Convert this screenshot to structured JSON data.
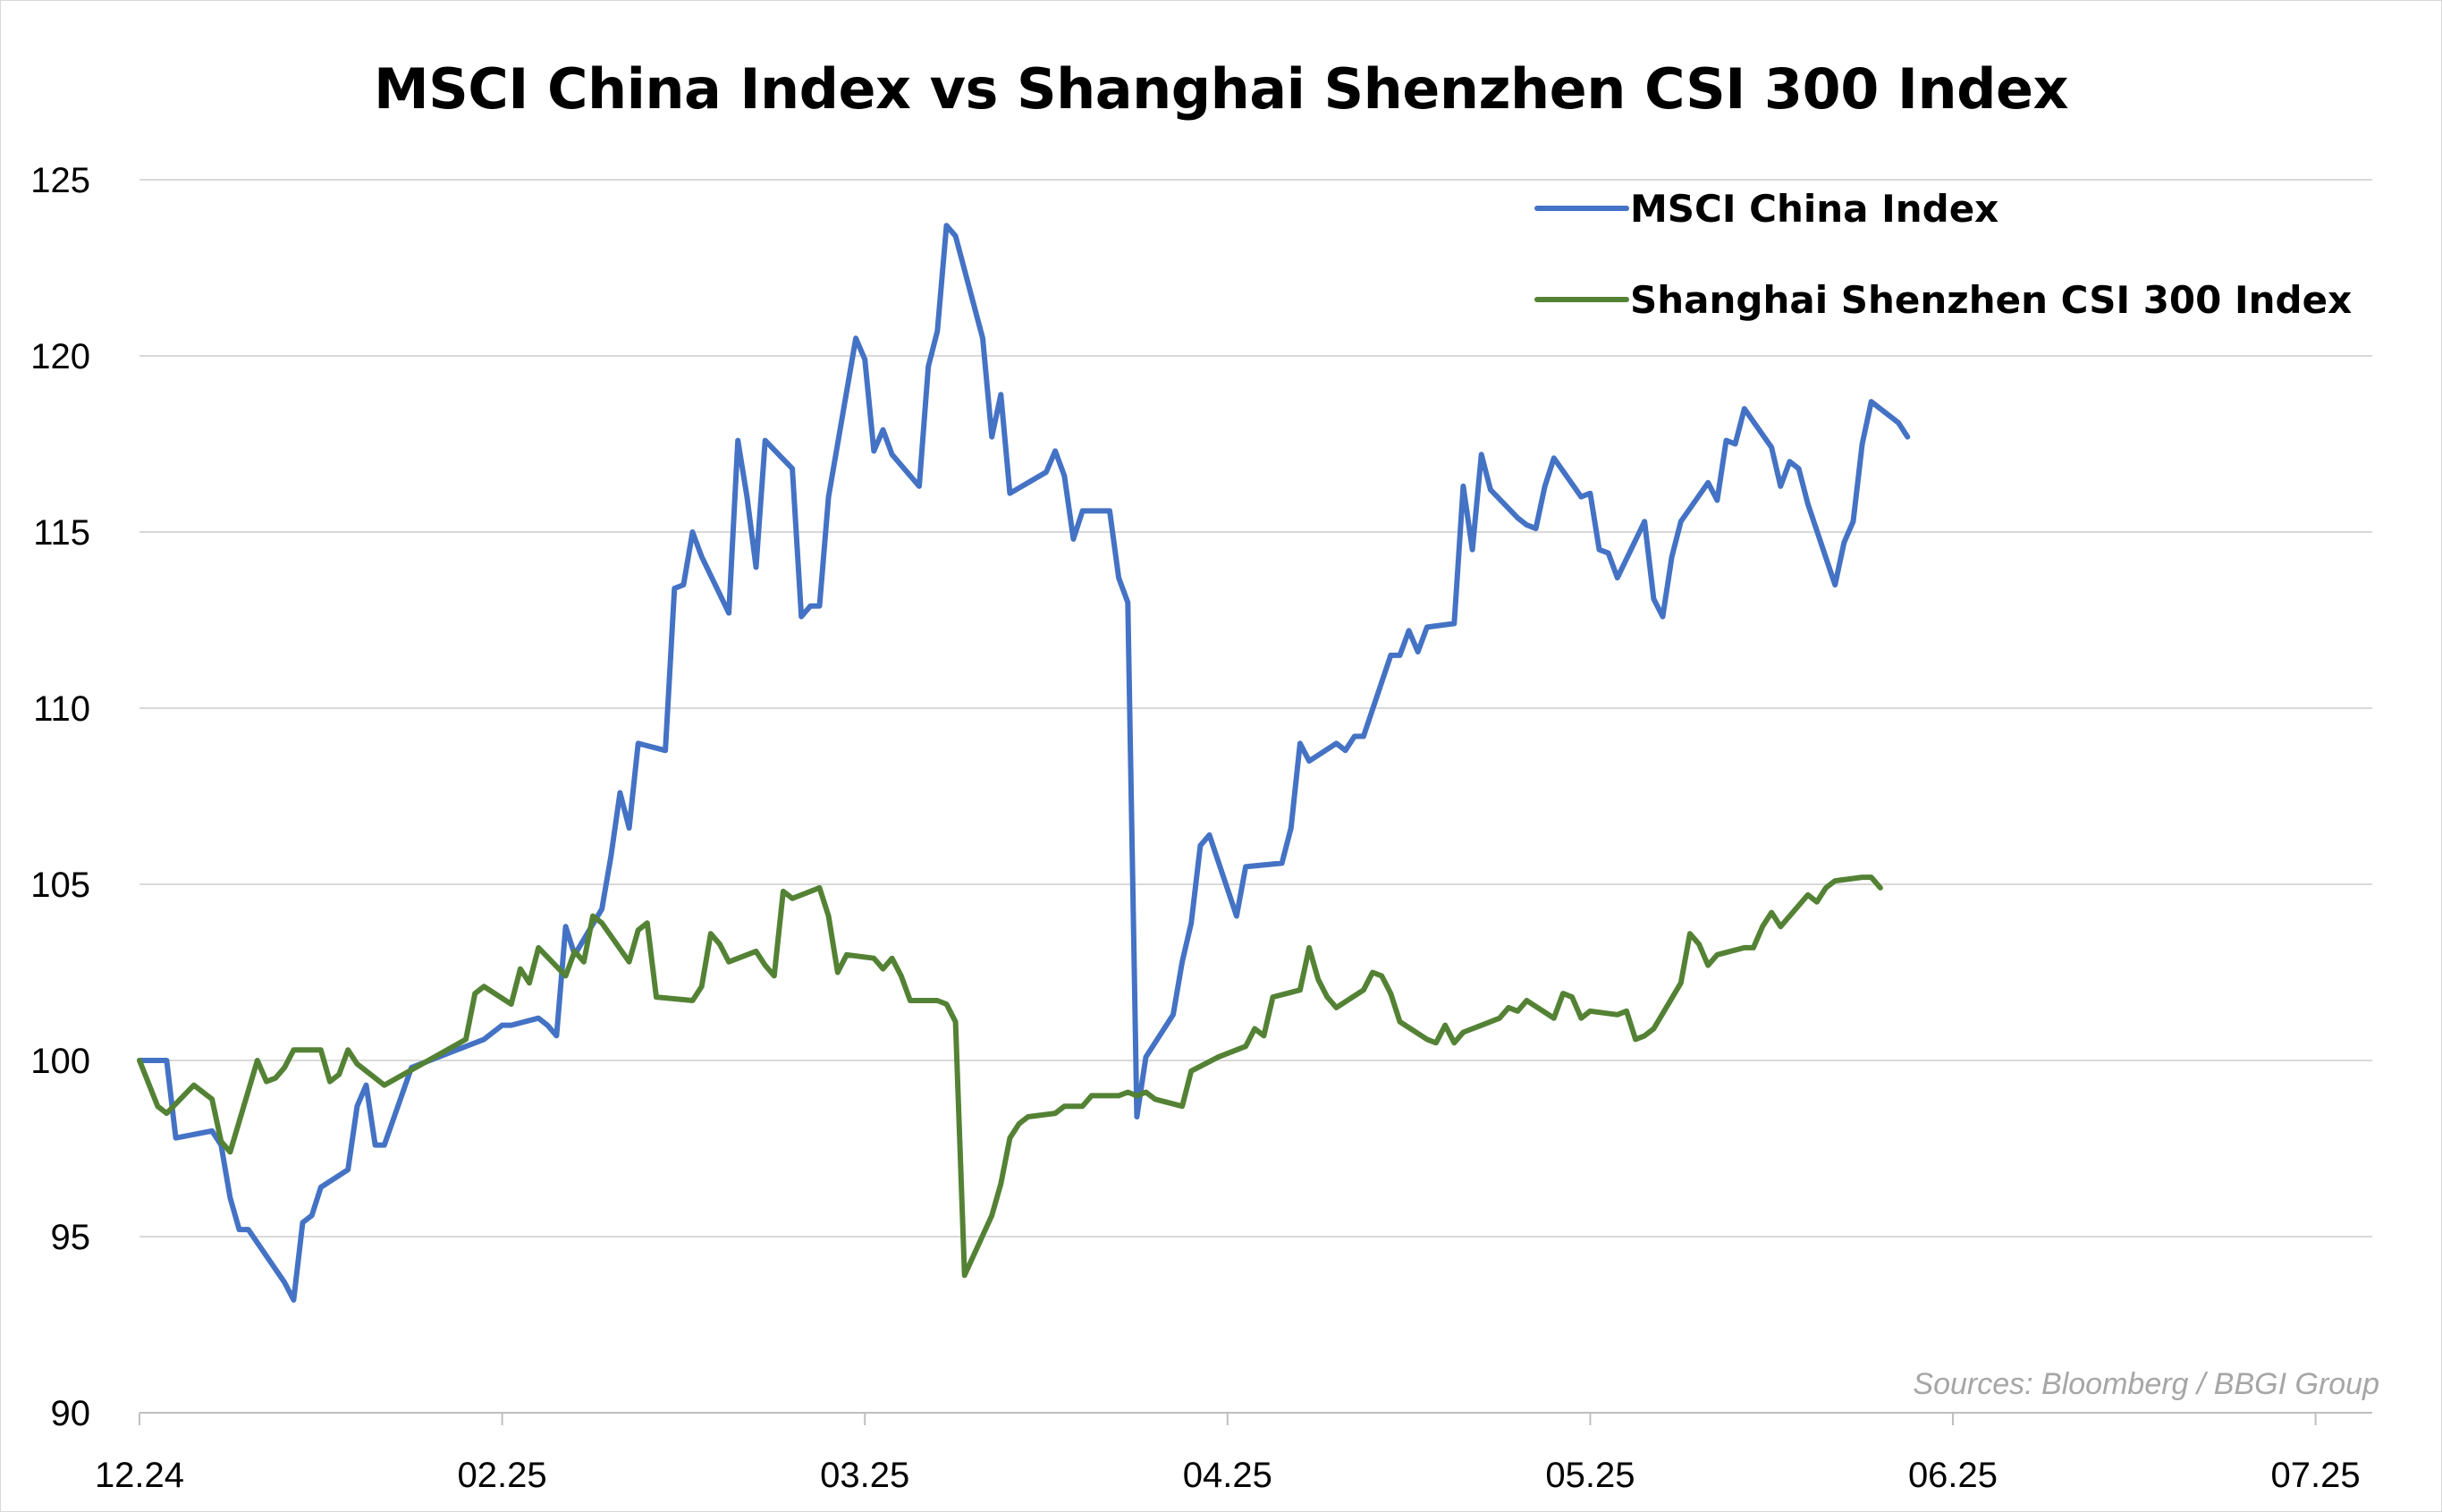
{
  "chart_data": {
    "type": "line",
    "title": "MSCI China Index vs Shanghai Shenzhen CSI 300 Index",
    "xlabel": "",
    "ylabel": "",
    "ylim": [
      90,
      125
    ],
    "yticks": [
      "90",
      "95",
      "100",
      "105",
      "110",
      "115",
      "120",
      "125"
    ],
    "xticks": [
      "12.24",
      "02.25",
      "03.25",
      "04.25",
      "05.25",
      "06.25",
      "07.25"
    ],
    "grid": "horizontal",
    "legend_position": "top-right",
    "source": "Sources: Bloomberg / BBGI Group",
    "x_unit": "trading day index (0 = 12.24)",
    "x_tick_positions": [
      0,
      40,
      80,
      120,
      160,
      200,
      240
    ],
    "series": [
      {
        "name": "MSCI China Index",
        "color": "#4472c4",
        "points": [
          [
            0,
            100
          ],
          [
            3,
            100
          ],
          [
            4,
            97.8
          ],
          [
            8,
            98
          ],
          [
            9,
            97.6
          ],
          [
            10,
            96.1
          ],
          [
            11,
            95.2
          ],
          [
            12,
            95.2
          ],
          [
            16,
            93.7
          ],
          [
            17,
            93.2
          ],
          [
            18,
            95.4
          ],
          [
            19,
            95.6
          ],
          [
            20,
            96.4
          ],
          [
            23,
            96.9
          ],
          [
            24,
            98.7
          ],
          [
            25,
            99.3
          ],
          [
            26,
            97.6
          ],
          [
            27,
            97.6
          ],
          [
            30,
            99.8
          ],
          [
            38,
            100.6
          ],
          [
            40,
            101
          ],
          [
            41,
            101
          ],
          [
            44,
            101.2
          ],
          [
            45,
            101
          ],
          [
            46,
            100.7
          ],
          [
            47,
            103.8
          ],
          [
            48,
            103
          ],
          [
            51,
            104.3
          ],
          [
            52,
            105.8
          ],
          [
            53,
            107.6
          ],
          [
            54,
            106.6
          ],
          [
            55,
            109
          ],
          [
            58,
            108.8
          ],
          [
            59,
            113.4
          ],
          [
            60,
            113.5
          ],
          [
            61,
            115
          ],
          [
            62,
            114.3
          ],
          [
            65,
            112.7
          ],
          [
            66,
            117.6
          ],
          [
            67,
            116
          ],
          [
            68,
            114
          ],
          [
            69,
            117.6
          ],
          [
            72,
            116.8
          ],
          [
            73,
            112.6
          ],
          [
            74,
            112.9
          ],
          [
            75,
            112.9
          ],
          [
            76,
            116
          ],
          [
            79,
            120.5
          ],
          [
            80,
            119.9
          ],
          [
            81,
            117.3
          ],
          [
            82,
            117.9
          ],
          [
            83,
            117.2
          ],
          [
            86,
            116.3
          ],
          [
            87,
            119.7
          ],
          [
            88,
            120.7
          ],
          [
            89,
            123.7
          ],
          [
            90,
            123.4
          ],
          [
            93,
            120.5
          ],
          [
            94,
            117.7
          ],
          [
            95,
            118.9
          ],
          [
            96,
            116.1
          ],
          [
            100,
            116.7
          ],
          [
            101,
            117.3
          ],
          [
            102,
            116.6
          ],
          [
            103,
            114.8
          ],
          [
            104,
            115.6
          ],
          [
            107,
            115.6
          ],
          [
            108,
            113.7
          ],
          [
            109,
            113
          ],
          [
            110,
            98.4
          ],
          [
            111,
            100.1
          ],
          [
            114,
            101.3
          ],
          [
            115,
            102.8
          ],
          [
            116,
            103.9
          ],
          [
            117,
            106.1
          ],
          [
            118,
            106.4
          ],
          [
            121,
            104.1
          ],
          [
            122,
            105.5
          ],
          [
            126,
            105.6
          ],
          [
            127,
            106.6
          ],
          [
            128,
            109
          ],
          [
            129,
            108.5
          ],
          [
            132,
            109
          ],
          [
            133,
            108.8
          ],
          [
            134,
            109.2
          ],
          [
            135,
            109.2
          ],
          [
            138,
            111.5
          ],
          [
            139,
            111.5
          ],
          [
            140,
            112.2
          ],
          [
            141,
            111.6
          ],
          [
            142,
            112.3
          ],
          [
            145,
            112.4
          ],
          [
            146,
            116.3
          ],
          [
            147,
            114.5
          ],
          [
            148,
            117.2
          ],
          [
            149,
            116.2
          ],
          [
            152,
            115.4
          ],
          [
            153,
            115.2
          ],
          [
            154,
            115.1
          ],
          [
            155,
            116.3
          ],
          [
            156,
            117.1
          ],
          [
            159,
            116
          ],
          [
            160,
            116.1
          ],
          [
            161,
            114.5
          ],
          [
            162,
            114.4
          ],
          [
            163,
            113.7
          ],
          [
            166,
            115.3
          ],
          [
            167,
            113.1
          ],
          [
            168,
            112.6
          ],
          [
            169,
            114.3
          ],
          [
            170,
            115.3
          ],
          [
            173,
            116.4
          ],
          [
            174,
            115.9
          ],
          [
            175,
            117.6
          ],
          [
            176,
            117.5
          ],
          [
            177,
            118.5
          ],
          [
            180,
            117.4
          ],
          [
            181,
            116.3
          ],
          [
            182,
            117
          ],
          [
            183,
            116.8
          ],
          [
            184,
            115.8
          ],
          [
            187,
            113.5
          ],
          [
            188,
            114.7
          ],
          [
            189,
            115.3
          ],
          [
            190,
            117.5
          ],
          [
            191,
            118.7
          ],
          [
            194,
            118.1
          ],
          [
            195,
            117.7
          ]
        ]
      },
      {
        "name": "Shanghai Shenzhen CSI 300 Index",
        "color": "#548235",
        "points": [
          [
            0,
            100
          ],
          [
            2,
            98.7
          ],
          [
            3,
            98.5
          ],
          [
            6,
            99.3
          ],
          [
            7,
            99.1
          ],
          [
            8,
            98.9
          ],
          [
            9,
            97.7
          ],
          [
            10,
            97.4
          ],
          [
            13,
            100
          ],
          [
            14,
            99.4
          ],
          [
            15,
            99.5
          ],
          [
            16,
            99.8
          ],
          [
            17,
            100.3
          ],
          [
            20,
            100.3
          ],
          [
            21,
            99.4
          ],
          [
            22,
            99.6
          ],
          [
            23,
            100.3
          ],
          [
            24,
            99.9
          ],
          [
            27,
            99.3
          ],
          [
            36,
            100.6
          ],
          [
            37,
            101.9
          ],
          [
            38,
            102.1
          ],
          [
            41,
            101.6
          ],
          [
            42,
            102.6
          ],
          [
            43,
            102.2
          ],
          [
            44,
            103.2
          ],
          [
            47,
            102.4
          ],
          [
            48,
            103.1
          ],
          [
            49,
            102.8
          ],
          [
            50,
            104.1
          ],
          [
            51,
            103.9
          ],
          [
            54,
            102.8
          ],
          [
            55,
            103.7
          ],
          [
            56,
            103.9
          ],
          [
            57,
            101.8
          ],
          [
            61,
            101.7
          ],
          [
            62,
            102.1
          ],
          [
            63,
            103.6
          ],
          [
            64,
            103.3
          ],
          [
            65,
            102.8
          ],
          [
            68,
            103.1
          ],
          [
            69,
            102.7
          ],
          [
            70,
            102.4
          ],
          [
            71,
            104.8
          ],
          [
            72,
            104.6
          ],
          [
            75,
            104.9
          ],
          [
            76,
            104.1
          ],
          [
            77,
            102.5
          ],
          [
            78,
            103
          ],
          [
            81,
            102.9
          ],
          [
            82,
            102.6
          ],
          [
            83,
            102.9
          ],
          [
            84,
            102.4
          ],
          [
            85,
            101.7
          ],
          [
            88,
            101.7
          ],
          [
            89,
            101.6
          ],
          [
            90,
            101.1
          ],
          [
            91,
            93.9
          ],
          [
            94,
            95.6
          ],
          [
            95,
            96.5
          ],
          [
            96,
            97.8
          ],
          [
            97,
            98.2
          ],
          [
            98,
            98.4
          ],
          [
            101,
            98.5
          ],
          [
            102,
            98.7
          ],
          [
            104,
            98.7
          ],
          [
            105,
            99
          ],
          [
            108,
            99
          ],
          [
            109,
            99.1
          ],
          [
            110,
            99
          ],
          [
            111,
            99.1
          ],
          [
            112,
            98.9
          ],
          [
            115,
            98.7
          ],
          [
            116,
            99.7
          ],
          [
            119,
            100.1
          ],
          [
            122,
            100.4
          ],
          [
            123,
            100.9
          ],
          [
            124,
            100.7
          ],
          [
            125,
            101.8
          ],
          [
            128,
            102
          ],
          [
            129,
            103.2
          ],
          [
            130,
            102.3
          ],
          [
            131,
            101.8
          ],
          [
            132,
            101.5
          ],
          [
            135,
            102
          ],
          [
            136,
            102.5
          ],
          [
            137,
            102.4
          ],
          [
            138,
            101.9
          ],
          [
            139,
            101.1
          ],
          [
            142,
            100.6
          ],
          [
            143,
            100.5
          ],
          [
            144,
            101
          ],
          [
            145,
            100.5
          ],
          [
            146,
            100.8
          ],
          [
            149,
            101.1
          ],
          [
            150,
            101.2
          ],
          [
            151,
            101.5
          ],
          [
            152,
            101.4
          ],
          [
            153,
            101.7
          ],
          [
            156,
            101.2
          ],
          [
            157,
            101.9
          ],
          [
            158,
            101.8
          ],
          [
            159,
            101.2
          ],
          [
            160,
            101.4
          ],
          [
            163,
            101.3
          ],
          [
            164,
            101.4
          ],
          [
            165,
            100.6
          ],
          [
            166,
            100.7
          ],
          [
            167,
            100.9
          ],
          [
            170,
            102.2
          ],
          [
            171,
            103.6
          ],
          [
            172,
            103.3
          ],
          [
            173,
            102.7
          ],
          [
            174,
            103
          ],
          [
            177,
            103.2
          ],
          [
            178,
            103.2
          ],
          [
            179,
            103.8
          ],
          [
            180,
            104.2
          ],
          [
            181,
            103.8
          ],
          [
            184,
            104.7
          ],
          [
            185,
            104.5
          ],
          [
            186,
            104.9
          ],
          [
            187,
            105.1
          ],
          [
            190,
            105.2
          ],
          [
            191,
            105.2
          ],
          [
            192,
            104.9
          ]
        ]
      }
    ]
  }
}
